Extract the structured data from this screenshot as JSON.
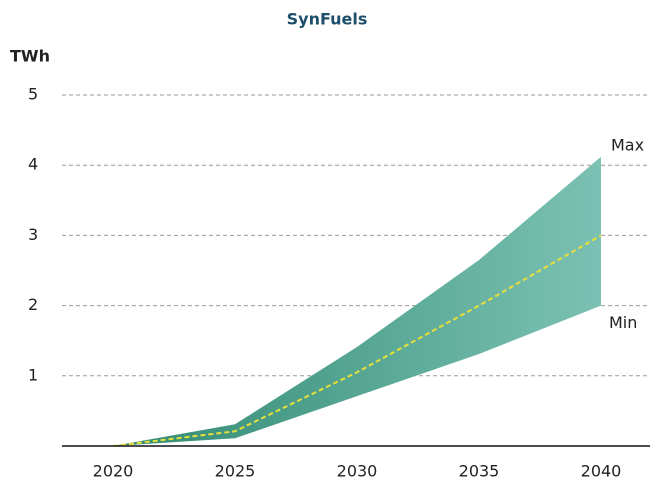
{
  "chart_data": {
    "type": "band",
    "title": "SynFuels",
    "y_label": "TWh",
    "categories": [
      "2020",
      "2025",
      "2030",
      "2035",
      "2040"
    ],
    "series": [
      {
        "name": "Max",
        "values": [
          0,
          0.31,
          1.41,
          2.65,
          4.12
        ]
      },
      {
        "name": "Min",
        "values": [
          0,
          0.11,
          0.71,
          1.31,
          2.0
        ]
      },
      {
        "values": [
          0,
          0.21,
          1.05,
          2.0,
          3.0
        ],
        "color": "#e8e03a"
      }
    ],
    "band_colors": [
      "#2f8a72",
      "#7cc1b3"
    ],
    "ylim": [
      0,
      5
    ],
    "yticks": [
      1,
      2,
      3,
      4,
      5
    ],
    "grid": true
  }
}
